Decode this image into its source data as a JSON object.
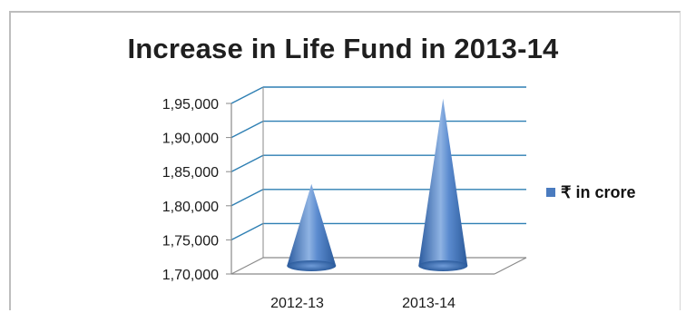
{
  "chart_data": {
    "type": "bar",
    "subtype": "3d-cone",
    "title": "Increase in Life Fund in 2013-14",
    "xlabel": "",
    "ylabel": "",
    "categories": [
      "2012-13",
      "2013-14"
    ],
    "series": [
      {
        "name": "₹ in crore",
        "values": [
          182000,
          194500
        ]
      }
    ],
    "ylim": [
      170000,
      195000
    ],
    "yticks": [
      170000,
      175000,
      180000,
      185000,
      190000,
      195000
    ],
    "ytick_labels": [
      "1,70,000",
      "1,75,000",
      "1,80,000",
      "1,85,000",
      "1,90,000",
      "1,95,000"
    ],
    "grid": true,
    "legend_position": "right",
    "colors": {
      "series": "#4a7bbf",
      "grid": "#2e7fb3",
      "axis": "#8a8a8a"
    }
  }
}
